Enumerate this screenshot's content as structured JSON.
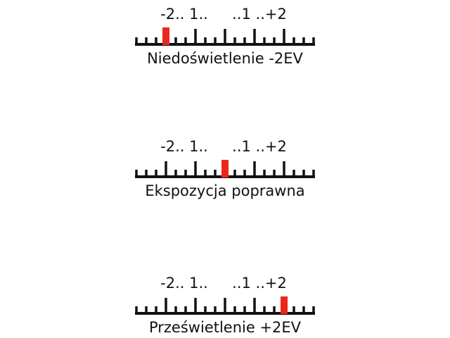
{
  "scale_label": {
    "left": "-2.. 1..",
    "right": "..1 ..+2"
  },
  "scale_range_ev": [
    -3,
    3
  ],
  "tick_step_ev": 0.3333,
  "marker_color": "#e8281c",
  "meters": [
    {
      "caption": "Niedoświetlenie -2EV",
      "ev": -2
    },
    {
      "caption": "Ekspozycja poprawna",
      "ev": 0
    },
    {
      "caption": "Prześwietlenie +2EV",
      "ev": 2
    }
  ]
}
